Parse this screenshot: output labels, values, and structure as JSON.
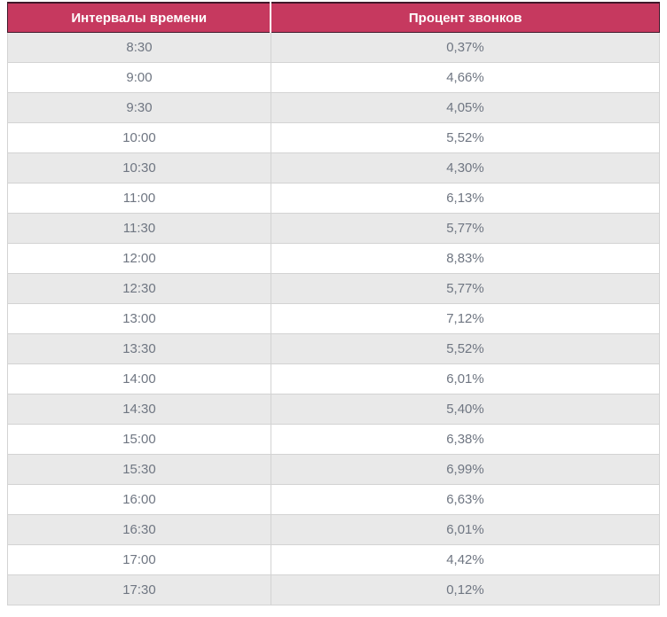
{
  "table": {
    "columns": [
      "Интервалы времени",
      "Процент звонков"
    ],
    "rows": [
      [
        "8:30",
        "0,37%"
      ],
      [
        "9:00",
        "4,66%"
      ],
      [
        "9:30",
        "4,05%"
      ],
      [
        "10:00",
        "5,52%"
      ],
      [
        "10:30",
        "4,30%"
      ],
      [
        "11:00",
        "6,13%"
      ],
      [
        "11:30",
        "5,77%"
      ],
      [
        "12:00",
        "8,83%"
      ],
      [
        "12:30",
        "5,77%"
      ],
      [
        "13:00",
        "7,12%"
      ],
      [
        "13:30",
        "5,52%"
      ],
      [
        "14:00",
        "6,01%"
      ],
      [
        "14:30",
        "5,40%"
      ],
      [
        "15:00",
        "6,38%"
      ],
      [
        "15:30",
        "6,99%"
      ],
      [
        "16:00",
        "6,63%"
      ],
      [
        "16:30",
        "6,01%"
      ],
      [
        "17:00",
        "4,42%"
      ],
      [
        "17:30",
        "0,12%"
      ]
    ]
  },
  "colors": {
    "header_bg": "#c6395f",
    "header_text": "#ffffff",
    "header_border": "#41182a",
    "row_alt_bg": "#e9e9e9",
    "row_bg": "#ffffff",
    "cell_text": "#6f7682",
    "grid_border": "#d3d3d3"
  },
  "chart_data": {
    "type": "table",
    "title": "",
    "columns": [
      "Интервалы времени",
      "Процент звонков"
    ],
    "categories": [
      "8:30",
      "9:00",
      "9:30",
      "10:00",
      "10:30",
      "11:00",
      "11:30",
      "12:00",
      "12:30",
      "13:00",
      "13:30",
      "14:00",
      "14:30",
      "15:00",
      "15:30",
      "16:00",
      "16:30",
      "17:00",
      "17:30"
    ],
    "values": [
      0.37,
      4.66,
      4.05,
      5.52,
      4.3,
      6.13,
      5.77,
      8.83,
      5.77,
      7.12,
      5.52,
      6.01,
      5.4,
      6.38,
      6.99,
      6.63,
      6.01,
      4.42,
      0.12
    ],
    "value_unit": "%",
    "decimal_separator": ","
  }
}
